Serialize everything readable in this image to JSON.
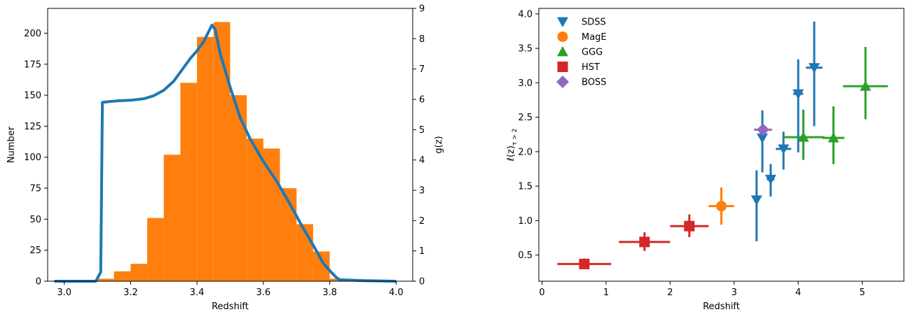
{
  "chart_data": [
    {
      "type": "bar",
      "subtype": "histogram-with-curve",
      "xlabel": "Redshift",
      "ylabel": "Number",
      "y2label": "g(z)",
      "xlim": [
        2.95,
        4.05
      ],
      "ylim": [
        0,
        220
      ],
      "y2lim": [
        0,
        9
      ],
      "xticks": [
        "3.0",
        "3.2",
        "3.4",
        "3.6",
        "3.8",
        "4.0"
      ],
      "yticks": [
        "0",
        "25",
        "50",
        "75",
        "100",
        "125",
        "150",
        "175",
        "200"
      ],
      "y2ticks": [
        "0",
        "1",
        "2",
        "3",
        "4",
        "5",
        "6",
        "7",
        "8",
        "9"
      ],
      "bar_color": "#ff7f0e",
      "curve_color": "#1f77b4",
      "histogram": {
        "bin_edges": [
          3.1,
          3.15,
          3.2,
          3.25,
          3.3,
          3.35,
          3.4,
          3.45,
          3.5,
          3.55,
          3.6,
          3.65,
          3.7,
          3.75,
          3.8,
          3.85
        ],
        "counts": [
          2,
          8,
          14,
          51,
          102,
          160,
          197,
          209,
          150,
          115,
          107,
          75,
          46,
          24,
          2
        ]
      },
      "g_curve": {
        "x": [
          2.97,
          3.095,
          3.11,
          3.115,
          3.13,
          3.16,
          3.2,
          3.24,
          3.27,
          3.3,
          3.33,
          3.36,
          3.38,
          3.4,
          3.42,
          3.445,
          3.455,
          3.47,
          3.5,
          3.53,
          3.56,
          3.6,
          3.64,
          3.68,
          3.72,
          3.76,
          3.78,
          3.8,
          3.82,
          3.83,
          3.9,
          4.0
        ],
        "y": [
          0,
          0,
          0.3,
          5.9,
          5.92,
          5.95,
          5.97,
          6.02,
          6.12,
          6.3,
          6.6,
          7.05,
          7.35,
          7.6,
          7.9,
          8.45,
          8.3,
          7.5,
          6.4,
          5.4,
          4.7,
          3.95,
          3.3,
          2.55,
          1.75,
          1.0,
          0.6,
          0.35,
          0.12,
          0.05,
          0.02,
          0
        ]
      }
    },
    {
      "type": "scatter",
      "subtype": "errorbar",
      "xlabel": "Redshift",
      "ylabel_math": {
        "main": "ℓ(z)",
        "sub": "τ > 2"
      },
      "xlim": [
        -0.05,
        5.65
      ],
      "ylim": [
        0.12,
        4.08
      ],
      "xticks": [
        "0",
        "1",
        "2",
        "3",
        "4",
        "5"
      ],
      "yticks": [
        "0.5",
        "1.0",
        "1.5",
        "2.0",
        "2.5",
        "3.0",
        "3.5",
        "4.0"
      ],
      "legend_position": "top-left",
      "series": [
        {
          "name": "SDSS",
          "marker": "triangle-down",
          "color": "#1f77b4",
          "points": [
            {
              "x": 3.35,
              "y": 1.3,
              "xerr": 0.0,
              "yerr_low": 0.6,
              "yerr_high": 0.43
            },
            {
              "x": 3.57,
              "y": 1.6,
              "xerr": 0.06,
              "yerr_low": 0.25,
              "yerr_high": 0.22
            },
            {
              "x": 3.77,
              "y": 2.04,
              "xerr": 0.12,
              "yerr_low": 0.3,
              "yerr_high": 0.25
            },
            {
              "x": 3.44,
              "y": 2.2,
              "xerr": 0.04,
              "yerr_low": 0.5,
              "yerr_high": 0.4
            },
            {
              "x": 4.0,
              "y": 2.84,
              "xerr": 0.08,
              "yerr_low": 0.85,
              "yerr_high": 0.5
            },
            {
              "x": 4.25,
              "y": 3.22,
              "xerr": 0.13,
              "yerr_low": 0.85,
              "yerr_high": 0.67
            }
          ]
        },
        {
          "name": "MagE",
          "marker": "circle",
          "color": "#ff7f0e",
          "points": [
            {
              "x": 2.8,
              "y": 1.21,
              "xerr": 0.2,
              "yerr_low": 0.27,
              "yerr_high": 0.27
            }
          ]
        },
        {
          "name": "GGG",
          "marker": "triangle-up",
          "color": "#2ca02c",
          "points": [
            {
              "x": 4.08,
              "y": 2.21,
              "xerr": 0.33,
              "yerr_low": 0.33,
              "yerr_high": 0.4
            },
            {
              "x": 4.55,
              "y": 2.2,
              "xerr": 0.17,
              "yerr_low": 0.38,
              "yerr_high": 0.46
            },
            {
              "x": 5.05,
              "y": 2.95,
              "xerr": 0.35,
              "yerr_low": 0.48,
              "yerr_high": 0.57
            }
          ]
        },
        {
          "name": "HST",
          "marker": "square",
          "color": "#d62728",
          "points": [
            {
              "x": 0.66,
              "y": 0.37,
              "xerr": 0.42,
              "yerr_low": 0.07,
              "yerr_high": 0.08
            },
            {
              "x": 1.6,
              "y": 0.69,
              "xerr": 0.4,
              "yerr_low": 0.13,
              "yerr_high": 0.14
            },
            {
              "x": 2.3,
              "y": 0.92,
              "xerr": 0.3,
              "yerr_low": 0.16,
              "yerr_high": 0.17
            }
          ]
        },
        {
          "name": "BOSS",
          "marker": "diamond",
          "color": "#9467bd",
          "points": [
            {
              "x": 3.45,
              "y": 2.32,
              "xerr": 0.14,
              "yerr_low": 0.02,
              "yerr_high": 0.02
            }
          ]
        }
      ]
    }
  ]
}
